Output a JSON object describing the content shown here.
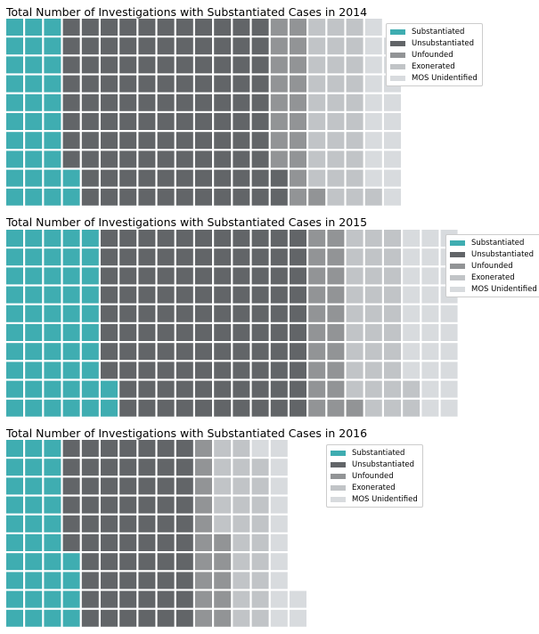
{
  "colors": {
    "Substantiated": "#3fadb1",
    "Unsubstantiated": "#626568",
    "Unfounded": "#929496",
    "Exonerated": "#c1c4c7",
    "MOS Unidentified": "#d8dbde"
  },
  "chart_data": [
    {
      "type": "waffle",
      "title": "Total Number of Investigations with Substantiated Cases in 2014",
      "rows": 10,
      "categories": [
        "Substantiated",
        "Unsubstantiated",
        "Unfounded",
        "Exonerated",
        "MOS Unidentified"
      ],
      "values": [
        32,
        110,
        19,
        30,
        18
      ],
      "legend": [
        "Substantiated",
        "Unsubstantiated",
        "Unfounded",
        "Exonerated",
        "MOS Unidentified"
      ],
      "legend_position": "upper-right"
    },
    {
      "type": "waffle",
      "title": "Total Number of Investigations with Substantiated Cases in 2015",
      "rows": 10,
      "categories": [
        "Substantiated",
        "Unsubstantiated",
        "Unfounded",
        "Exonerated",
        "MOS Unidentified"
      ],
      "values": [
        52,
        108,
        21,
        31,
        28
      ],
      "legend": [
        "Substantiated",
        "Unsubstantiated",
        "Unfounded",
        "Exonerated",
        "MOS Unidentified"
      ],
      "legend_position": "upper-right"
    },
    {
      "type": "waffle",
      "title": "Total Number of Investigations with Substantiated Cases in 2016",
      "rows": 10,
      "categories": [
        "Substantiated",
        "Unsubstantiated",
        "Unfounded",
        "Exonerated",
        "MOS Unidentified"
      ],
      "values": [
        34,
        66,
        15,
        24,
        13
      ],
      "legend": [
        "Substantiated",
        "Unsubstantiated",
        "Unfounded",
        "Exonerated",
        "MOS Unidentified"
      ],
      "legend_position": "upper-right"
    }
  ]
}
